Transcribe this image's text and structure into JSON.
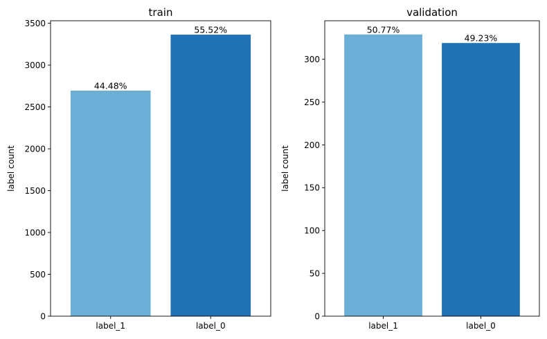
{
  "chart_data": [
    {
      "type": "bar",
      "title": "train",
      "xlabel": "",
      "ylabel": "label count",
      "categories": [
        "label_1",
        "label_0"
      ],
      "values": [
        2695,
        3364
      ],
      "bar_labels": [
        "44.48%",
        "55.52%"
      ],
      "bar_colors": [
        "#6baed6",
        "#2171b5"
      ],
      "ylim": [
        0,
        3530
      ],
      "yticks": [
        0,
        500,
        1000,
        1500,
        2000,
        2500,
        3000,
        3500
      ],
      "grid": false
    },
    {
      "type": "bar",
      "title": "validation",
      "xlabel": "",
      "ylabel": "label count",
      "categories": [
        "label_1",
        "label_0"
      ],
      "values": [
        329,
        319
      ],
      "bar_labels": [
        "50.77%",
        "49.23%"
      ],
      "bar_colors": [
        "#6baed6",
        "#2171b5"
      ],
      "ylim": [
        0,
        345
      ],
      "yticks": [
        0,
        50,
        100,
        150,
        200,
        250,
        300
      ],
      "grid": false
    }
  ]
}
